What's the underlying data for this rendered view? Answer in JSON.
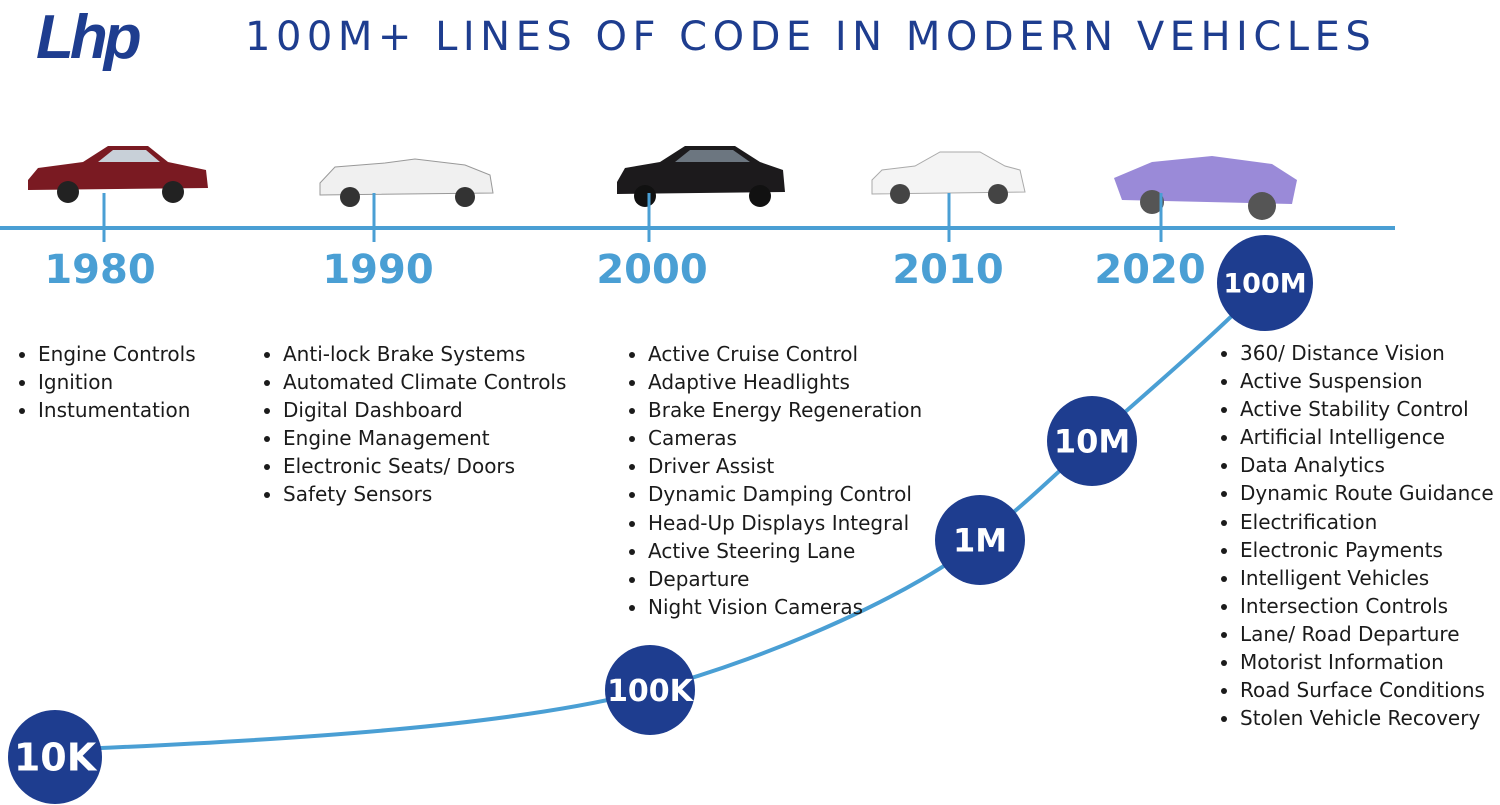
{
  "header": {
    "logo": "Lhp",
    "title": "100M+ LINES OF CODE IN MODERN VEHICLES"
  },
  "timeline": {
    "eras": [
      {
        "year": "1980",
        "features": [
          "Engine Controls",
          "Ignition",
          "Instumentation"
        ]
      },
      {
        "year": "1990",
        "features": [
          "Anti-lock Brake Systems",
          "Automated Climate Controls",
          "Digital Dashboard",
          "Engine Management",
          "Electronic Seats/ Doors",
          "Safety Sensors"
        ]
      },
      {
        "year": "2000",
        "features": [
          "Active Cruise Control",
          "Adaptive Headlights",
          "Brake Energy Regeneration",
          "Cameras",
          "Driver Assist",
          "Dynamic Damping Control",
          "Head-Up Displays Integral",
          "Active Steering Lane",
          "Departure",
          "Night Vision Cameras"
        ]
      },
      {
        "year": "2010"
      },
      {
        "year": "2020",
        "features": [
          "360/ Distance Vision",
          "Active Suspension",
          "Active Stability Control",
          "Artificial Intelligence",
          "Data Analytics",
          "Dynamic Route Guidance",
          "Electrification",
          "Electronic Payments",
          "Intelligent Vehicles",
          "Intersection Controls",
          "Lane/ Road Departure",
          "Motorist Information",
          "Road Surface Conditions",
          "Stolen Vehicle Recovery"
        ]
      }
    ]
  },
  "milestones": [
    "10K",
    "100K",
    "1M",
    "10M",
    "100M"
  ]
}
